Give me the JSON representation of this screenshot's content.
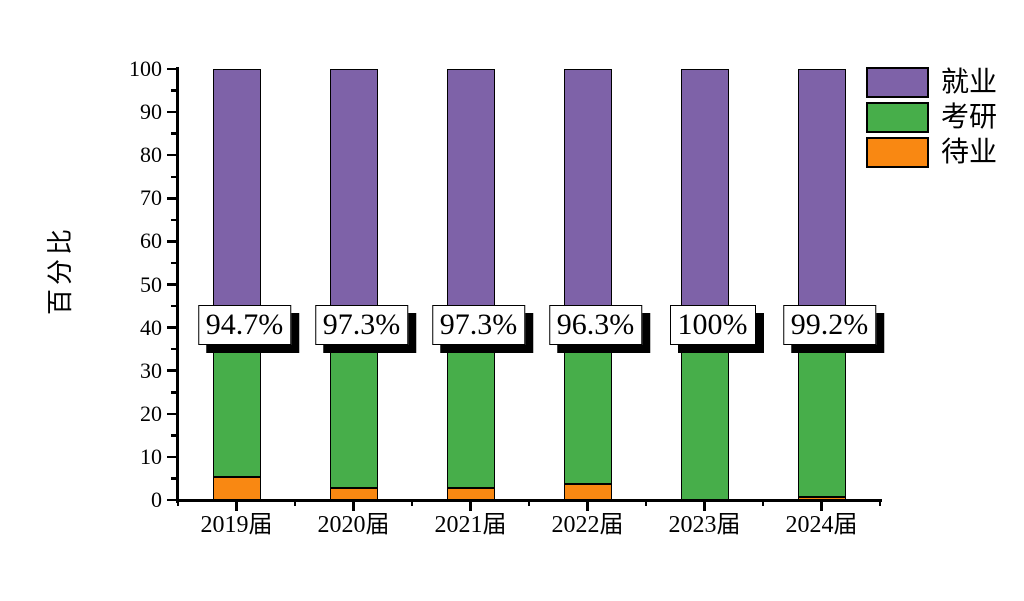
{
  "chart_data": {
    "type": "bar",
    "stacked": true,
    "categories": [
      "2019届",
      "2020届",
      "2021届",
      "2022届",
      "2023届",
      "2024届"
    ],
    "series": [
      {
        "name": "待业",
        "key": "unemployed",
        "color": "#F98812",
        "values": [
          5.3,
          2.7,
          2.7,
          3.7,
          0,
          0.8
        ]
      },
      {
        "name": "考研",
        "key": "postgraduate",
        "color": "#47AE4A",
        "values": [
          34.7,
          37.3,
          37.3,
          36.3,
          40,
          39.2
        ]
      },
      {
        "name": "就业",
        "key": "employed",
        "color": "#7E62A8",
        "values": [
          60,
          60,
          60,
          60,
          60,
          60
        ]
      }
    ],
    "annotations": [
      "94.7%",
      "97.3%",
      "97.3%",
      "96.3%",
      "100%",
      "99.2%"
    ],
    "title": "",
    "xlabel": "",
    "ylabel": "百分比",
    "ylim": [
      0,
      100
    ],
    "y_major_step": 10,
    "y_minor_step": 5,
    "grid": false,
    "legend_position": "top-right",
    "legend_order": [
      "就业",
      "考研",
      "待业"
    ]
  }
}
